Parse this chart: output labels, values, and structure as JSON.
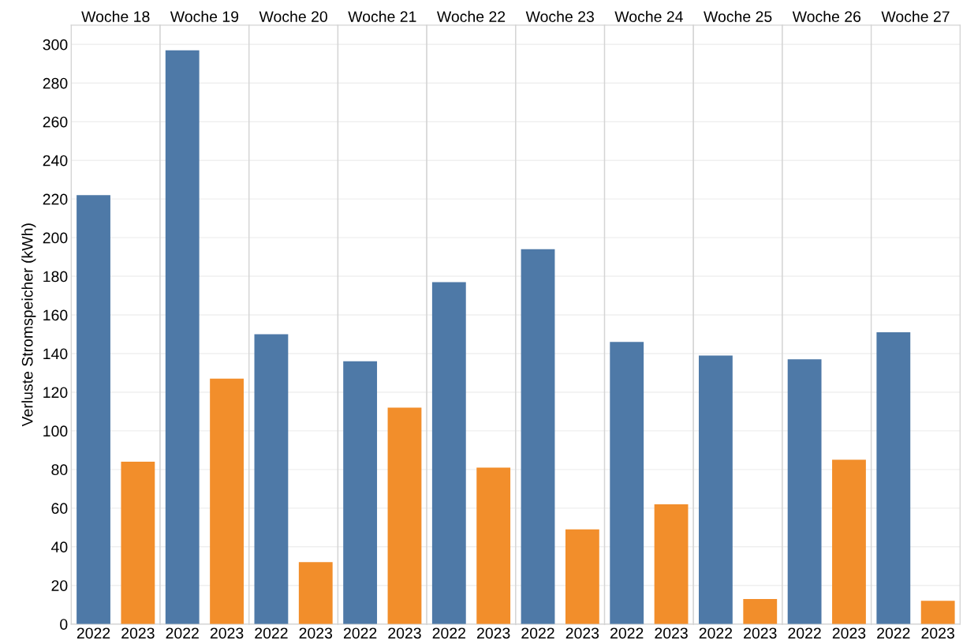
{
  "chart_data": [
    {
      "type": "bar",
      "title": "Woche 18",
      "ylabel": "Verluste Stromspeicher (kWh)",
      "categories": [
        "2022",
        "2023"
      ],
      "values": [
        222,
        84
      ],
      "colors": [
        "#4e79a7",
        "#f28e2b"
      ],
      "ylim": [
        0,
        310
      ],
      "yticks": [
        0,
        20,
        40,
        60,
        80,
        100,
        120,
        140,
        160,
        180,
        200,
        220,
        240,
        260,
        280,
        300
      ],
      "grid": "y"
    },
    {
      "type": "bar",
      "title": "Woche 19",
      "categories": [
        "2022",
        "2023"
      ],
      "values": [
        297,
        127
      ],
      "colors": [
        "#4e79a7",
        "#f28e2b"
      ],
      "ylim": [
        0,
        310
      ],
      "yticks": [
        0,
        20,
        40,
        60,
        80,
        100,
        120,
        140,
        160,
        180,
        200,
        220,
        240,
        260,
        280,
        300
      ],
      "grid": "y",
      "tick_labels": "x"
    },
    {
      "type": "bar",
      "title": "Woche 20",
      "categories": [
        "2022",
        "2023"
      ],
      "values": [
        150,
        32
      ],
      "colors": [
        "#4e79a7",
        "#f28e2b"
      ],
      "ylim": [
        0,
        310
      ],
      "yticks": [
        0,
        20,
        40,
        60,
        80,
        100,
        120,
        140,
        160,
        180,
        200,
        220,
        240,
        260,
        280,
        300
      ],
      "grid": "y",
      "tick_labels": "x"
    },
    {
      "type": "bar",
      "title": "Woche 21",
      "categories": [
        "2022",
        "2023"
      ],
      "values": [
        136,
        112
      ],
      "colors": [
        "#4e79a7",
        "#f28e2b"
      ],
      "ylim": [
        0,
        310
      ],
      "yticks": [
        0,
        20,
        40,
        60,
        80,
        100,
        120,
        140,
        160,
        180,
        200,
        220,
        240,
        260,
        280,
        300
      ],
      "grid": "y",
      "tick_labels": "x"
    },
    {
      "type": "bar",
      "title": "Woche 22",
      "categories": [
        "2022",
        "2023"
      ],
      "values": [
        177,
        81
      ],
      "colors": [
        "#4e79a7",
        "#f28e2b"
      ],
      "ylim": [
        0,
        310
      ],
      "yticks": [
        0,
        20,
        40,
        60,
        80,
        100,
        120,
        140,
        160,
        180,
        200,
        220,
        240,
        260,
        280,
        300
      ],
      "grid": "y",
      "tick_labels": "x"
    },
    {
      "type": "bar",
      "title": "Woche 23",
      "categories": [
        "2022",
        "2023"
      ],
      "values": [
        194,
        49
      ],
      "colors": [
        "#4e79a7",
        "#f28e2b"
      ],
      "ylim": [
        0,
        310
      ],
      "yticks": [
        0,
        20,
        40,
        60,
        80,
        100,
        120,
        140,
        160,
        180,
        200,
        220,
        240,
        260,
        280,
        300
      ],
      "grid": "y",
      "tick_labels": "x"
    },
    {
      "type": "bar",
      "title": "Woche 24",
      "categories": [
        "2022",
        "2023"
      ],
      "values": [
        146,
        62
      ],
      "colors": [
        "#4e79a7",
        "#f28e2b"
      ],
      "ylim": [
        0,
        310
      ],
      "yticks": [
        0,
        20,
        40,
        60,
        80,
        100,
        120,
        140,
        160,
        180,
        200,
        220,
        240,
        260,
        280,
        300
      ],
      "grid": "y",
      "tick_labels": "x"
    },
    {
      "type": "bar",
      "title": "Woche 25",
      "categories": [
        "2022",
        "2023"
      ],
      "values": [
        139,
        13
      ],
      "colors": [
        "#4e79a7",
        "#f28e2b"
      ],
      "ylim": [
        0,
        310
      ],
      "yticks": [
        0,
        20,
        40,
        60,
        80,
        100,
        120,
        140,
        160,
        180,
        200,
        220,
        240,
        260,
        280,
        300
      ],
      "grid": "y",
      "tick_labels": "x"
    },
    {
      "type": "bar",
      "title": "Woche 26",
      "categories": [
        "2022",
        "2023"
      ],
      "values": [
        137,
        85
      ],
      "colors": [
        "#4e79a7",
        "#f28e2b"
      ],
      "ylim": [
        0,
        310
      ],
      "yticks": [
        0,
        20,
        40,
        60,
        80,
        100,
        120,
        140,
        160,
        180,
        200,
        220,
        240,
        260,
        280,
        300
      ],
      "grid": "y",
      "tick_labels": "x"
    },
    {
      "type": "bar",
      "title": "Woche 27",
      "categories": [
        "2022",
        "2023"
      ],
      "values": [
        151,
        12
      ],
      "colors": [
        "#4e79a7",
        "#f28e2b"
      ],
      "ylim": [
        0,
        310
      ],
      "yticks": [
        0,
        20,
        40,
        60,
        80,
        100,
        120,
        140,
        160,
        180,
        200,
        220,
        240,
        260,
        280,
        300
      ],
      "grid": "y",
      "tick_labels": "x"
    }
  ]
}
